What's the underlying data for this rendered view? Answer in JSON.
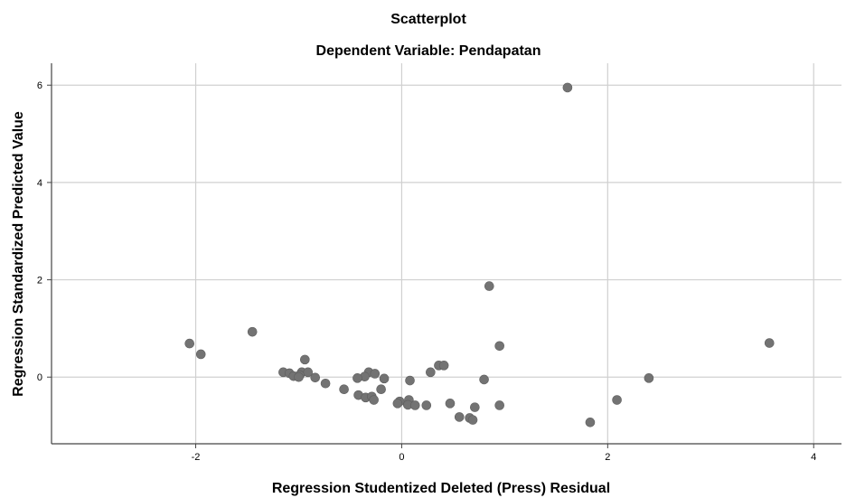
{
  "chart_data": {
    "type": "scatter",
    "title": "Scatterplot",
    "subtitle": "Dependent Variable: Pendapatan",
    "xlabel": "Regression Studentized Deleted (Press) Residual",
    "ylabel": "Regression Standardized Predicted Value",
    "xlim": [
      -3.4,
      4.27
    ],
    "ylim": [
      -1.37,
      6.45
    ],
    "xticks": [
      -2,
      0,
      2,
      4
    ],
    "yticks": [
      0,
      2,
      4,
      6
    ],
    "grid": true,
    "point_color": "#737373",
    "points": [
      {
        "x": 1.61,
        "y": 5.95
      },
      {
        "x": 0.85,
        "y": 1.87
      },
      {
        "x": -1.45,
        "y": 0.93
      },
      {
        "x": 3.57,
        "y": 0.7
      },
      {
        "x": -2.06,
        "y": 0.69
      },
      {
        "x": 0.95,
        "y": 0.64
      },
      {
        "x": -1.95,
        "y": 0.47
      },
      {
        "x": -0.94,
        "y": 0.36
      },
      {
        "x": 0.36,
        "y": 0.24
      },
      {
        "x": 0.41,
        "y": 0.24
      },
      {
        "x": -1.15,
        "y": 0.1
      },
      {
        "x": -1.09,
        "y": 0.08
      },
      {
        "x": -0.97,
        "y": 0.1
      },
      {
        "x": -0.91,
        "y": 0.1
      },
      {
        "x": -0.32,
        "y": 0.1
      },
      {
        "x": 0.28,
        "y": 0.1
      },
      {
        "x": -0.26,
        "y": 0.07
      },
      {
        "x": -1.05,
        "y": 0.02
      },
      {
        "x": -0.99,
        "y": 0.04
      },
      {
        "x": -1.0,
        "y": 0.0
      },
      {
        "x": -0.84,
        "y": -0.01
      },
      {
        "x": -0.36,
        "y": 0.01
      },
      {
        "x": -0.43,
        "y": -0.02
      },
      {
        "x": -0.17,
        "y": -0.03
      },
      {
        "x": 2.4,
        "y": -0.02
      },
      {
        "x": 0.8,
        "y": -0.05
      },
      {
        "x": 0.08,
        "y": -0.07
      },
      {
        "x": -0.74,
        "y": -0.13
      },
      {
        "x": -0.2,
        "y": -0.25
      },
      {
        "x": -0.56,
        "y": -0.25
      },
      {
        "x": -0.42,
        "y": -0.37
      },
      {
        "x": -0.35,
        "y": -0.42
      },
      {
        "x": -0.29,
        "y": -0.4
      },
      {
        "x": -0.27,
        "y": -0.47
      },
      {
        "x": 0.07,
        "y": -0.47
      },
      {
        "x": -0.02,
        "y": -0.5
      },
      {
        "x": -0.04,
        "y": -0.54
      },
      {
        "x": 0.06,
        "y": -0.57
      },
      {
        "x": 0.13,
        "y": -0.58
      },
      {
        "x": 0.24,
        "y": -0.58
      },
      {
        "x": 0.47,
        "y": -0.54
      },
      {
        "x": 0.95,
        "y": -0.58
      },
      {
        "x": 0.71,
        "y": -0.62
      },
      {
        "x": 2.09,
        "y": -0.47
      },
      {
        "x": 0.56,
        "y": -0.82
      },
      {
        "x": 0.66,
        "y": -0.84
      },
      {
        "x": 0.69,
        "y": -0.88
      },
      {
        "x": 1.83,
        "y": -0.93
      }
    ]
  }
}
